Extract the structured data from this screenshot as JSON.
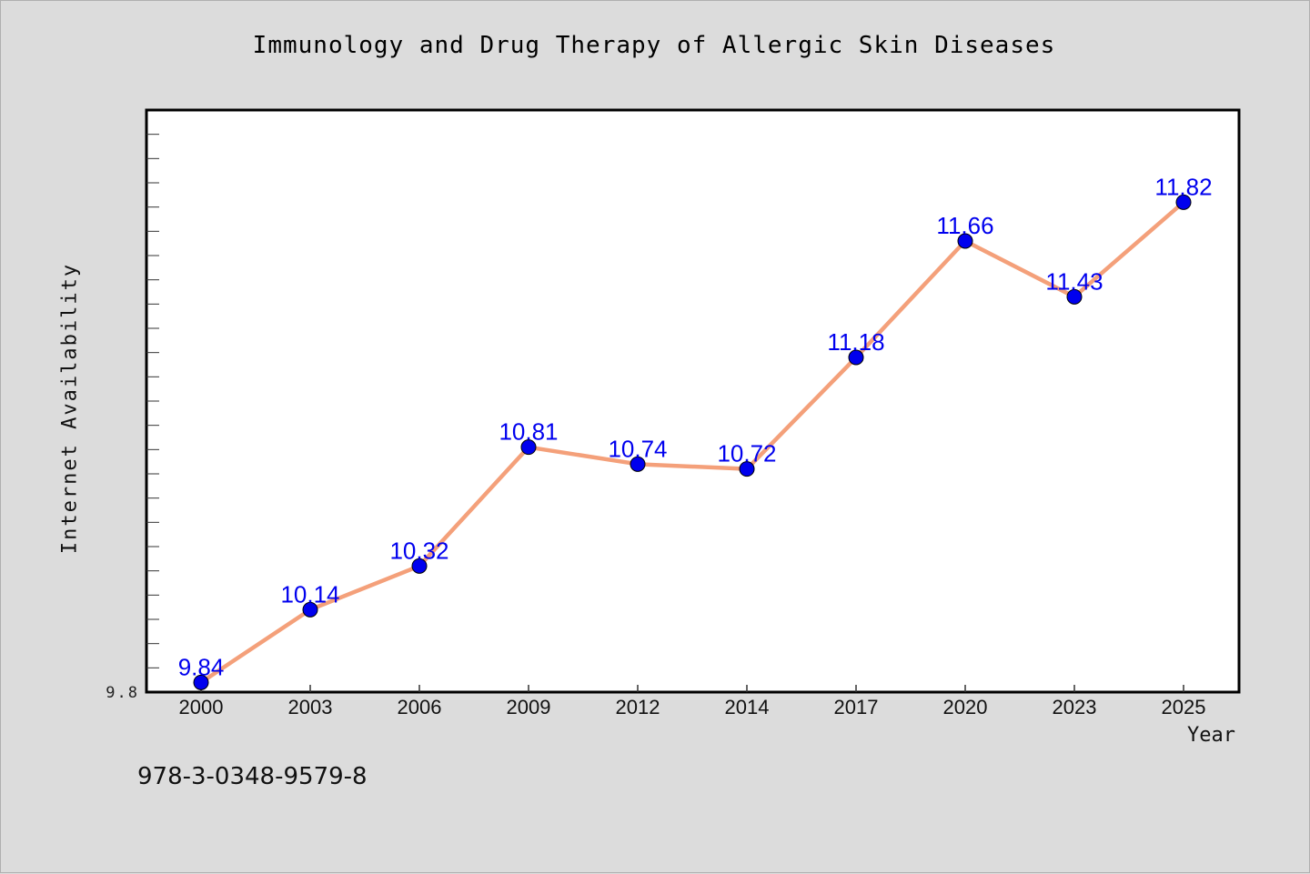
{
  "chart_data": {
    "type": "line",
    "title": "Immunology and Drug Therapy of Allergic Skin Diseases",
    "xlabel": "Year",
    "ylabel": "Internet Availability",
    "categories": [
      "2000",
      "2003",
      "2006",
      "2009",
      "2012",
      "2014",
      "2017",
      "2020",
      "2023",
      "2025"
    ],
    "series": [
      {
        "values": [
          9.84,
          10.14,
          10.32,
          10.81,
          10.74,
          10.72,
          11.18,
          11.66,
          11.43,
          11.82
        ]
      }
    ],
    "data_labels": [
      "9.84",
      "10.14",
      "10.32",
      "10.81",
      "10.74",
      "10.72",
      "11.18",
      "11.66",
      "11.43",
      "11.82"
    ],
    "ylim": [
      9.8,
      12.2
    ],
    "y_tick_labels": [
      "9.8"
    ],
    "grid": false,
    "line_color": "#f4a07a",
    "marker_color": "#0000ee",
    "label_color": "#0000ee"
  },
  "footer": {
    "isbn": "978-3-0348-9579-8"
  }
}
